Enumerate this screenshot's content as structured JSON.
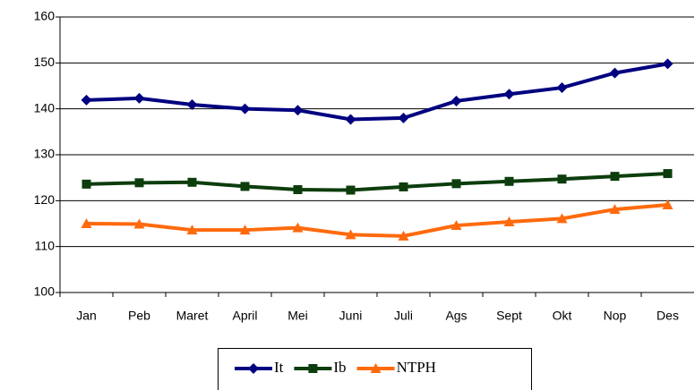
{
  "chart_data": {
    "type": "line",
    "categories": [
      "Jan",
      "Peb",
      "Maret",
      "April",
      "Mei",
      "Juni",
      "Juli",
      "Ags",
      "Sept",
      "Okt",
      "Nop",
      "Des"
    ],
    "series": [
      {
        "name": "It",
        "color": "#000080",
        "marker": "diamond",
        "values": [
          141.9,
          142.3,
          140.9,
          140,
          139.7,
          137.7,
          138,
          141.7,
          143.2,
          144.6,
          147.8,
          149.8
        ]
      },
      {
        "name": "Ib",
        "color": "#0d3d0d",
        "marker": "square",
        "values": [
          123.6,
          123.9,
          124,
          123.1,
          122.4,
          122.3,
          123,
          123.7,
          124.2,
          124.7,
          125.3,
          125.9
        ]
      },
      {
        "name": "NTPH",
        "color": "#ff6a0d",
        "marker": "triangle",
        "values": [
          115,
          114.9,
          113.6,
          113.6,
          114.1,
          112.6,
          112.3,
          114.6,
          115.4,
          116.1,
          118.1,
          119.1
        ]
      }
    ],
    "ylim": [
      100,
      160
    ],
    "yticks": [
      100,
      110,
      120,
      130,
      140,
      150,
      160
    ],
    "grid": true,
    "legend": "bottom"
  }
}
